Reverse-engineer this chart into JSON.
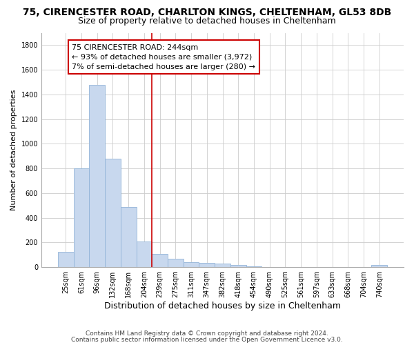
{
  "title_line1": "75, CIRENCESTER ROAD, CHARLTON KINGS, CHELTENHAM, GL53 8DB",
  "title_line2": "Size of property relative to detached houses in Cheltenham",
  "xlabel": "Distribution of detached houses by size in Cheltenham",
  "ylabel": "Number of detached properties",
  "categories": [
    "25sqm",
    "61sqm",
    "96sqm",
    "132sqm",
    "168sqm",
    "204sqm",
    "239sqm",
    "275sqm",
    "311sqm",
    "347sqm",
    "382sqm",
    "418sqm",
    "454sqm",
    "490sqm",
    "525sqm",
    "561sqm",
    "597sqm",
    "633sqm",
    "668sqm",
    "704sqm",
    "740sqm"
  ],
  "values": [
    125,
    800,
    1480,
    880,
    490,
    205,
    105,
    65,
    42,
    35,
    28,
    20,
    8,
    0,
    0,
    0,
    0,
    0,
    0,
    0,
    15
  ],
  "bar_color": "#c8d8ee",
  "bar_edge_color": "#92b4d8",
  "vline_index": 6,
  "vline_color": "#cc0000",
  "annotation_line1": "75 CIRENCESTER ROAD: 244sqm",
  "annotation_line2": "← 93% of detached houses are smaller (3,972)",
  "annotation_line3": "7% of semi-detached houses are larger (280) →",
  "annotation_box_edgecolor": "#cc0000",
  "ylim_max": 1900,
  "yticks": [
    0,
    200,
    400,
    600,
    800,
    1000,
    1200,
    1400,
    1600,
    1800
  ],
  "footer1": "Contains HM Land Registry data © Crown copyright and database right 2024.",
  "footer2": "Contains public sector information licensed under the Open Government Licence v3.0.",
  "bg_color": "#ffffff",
  "plot_bg_color": "#ffffff",
  "grid_color": "#cccccc",
  "title1_fontsize": 10,
  "title2_fontsize": 9,
  "tick_fontsize": 7,
  "ylabel_fontsize": 8,
  "xlabel_fontsize": 9,
  "annotation_fontsize": 8,
  "footer_fontsize": 6.5
}
